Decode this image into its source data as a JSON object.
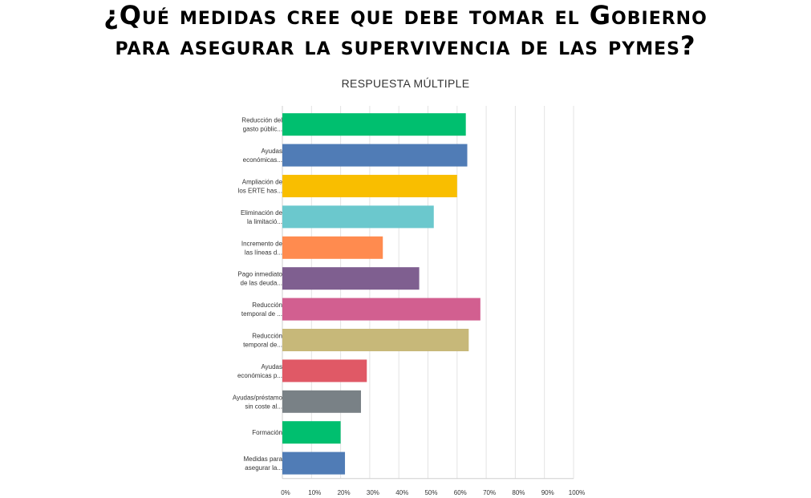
{
  "header": {
    "title_line1": "¿Qué medidas cree que debe tomar el Gobierno",
    "title_line2": "para asegurar la supervivencia de las pymes?",
    "subtitle": "RESPUESTA MÚLTIPLE"
  },
  "chart_data": {
    "type": "bar",
    "orientation": "horizontal",
    "title": "",
    "xlabel": "",
    "ylabel": "",
    "xlim": [
      0,
      100
    ],
    "grid": true,
    "legend": "none",
    "ticks": [
      "0%",
      "10%",
      "20%",
      "30%",
      "40%",
      "50%",
      "60%",
      "70%",
      "80%",
      "90%",
      "100%"
    ],
    "categories": [
      [
        "Reducción del",
        "gasto públic..."
      ],
      [
        "Ayudas",
        "económicas..."
      ],
      [
        "Ampliación de",
        "los ERTE has..."
      ],
      [
        "Eliminación de",
        "la limitació..."
      ],
      [
        "Incremento de",
        "las líneas d..."
      ],
      [
        "Pago inmediato",
        "de las deuda..."
      ],
      [
        "Reducción",
        "temporal de ..."
      ],
      [
        "Reducción",
        "temporal de..."
      ],
      [
        "Ayudas",
        "económicas p..."
      ],
      [
        "Ayudas/préstamo",
        "sin coste al..."
      ],
      [
        "Formación"
      ],
      [
        "Medidas para",
        "asegurar la..."
      ]
    ],
    "values": [
      63,
      63.5,
      60,
      52,
      34.5,
      47,
      68,
      64,
      29,
      27,
      20,
      21.5
    ],
    "colors": [
      "#00bf6f",
      "#507cb6",
      "#f9be00",
      "#6bc8cd",
      "#ff8b4f",
      "#7f5f90",
      "#d25f90",
      "#c7b879",
      "#e05966",
      "#798186",
      "#00bf6f",
      "#507cb6"
    ]
  }
}
